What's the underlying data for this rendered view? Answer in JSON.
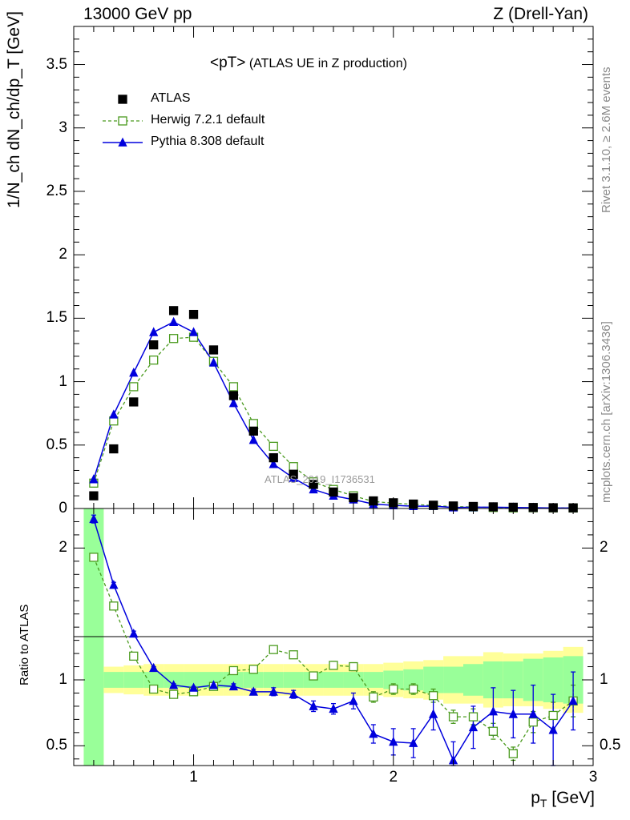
{
  "header": {
    "left": "13000 GeV pp",
    "right": "Z (Drell-Yan)"
  },
  "side_labels": {
    "rivet": "Rivet 3.1.10, ≥ 2.6M events",
    "mcplots": "mcplots.cern.ch [arXiv:1306.3436]"
  },
  "colors": {
    "atlas": "#000000",
    "herwig": "#4a9a1e",
    "pythia": "#0000dd",
    "band_outer": "#ffff99",
    "band_inner": "#99ff99",
    "watermark": "#9a9a9a"
  },
  "chart_data": [
    {
      "type": "scatter",
      "panel": "main",
      "title": "<pT>",
      "subtitle": "(ATLAS UE in Z production)",
      "watermark": "ATLAS_2019_I1736531",
      "xlabel_main": "p",
      "xlabel_sub": "T",
      "xlabel_unit": "[GeV]",
      "ylabel": "1/N_ch dN_ch/dp_T [GeV]",
      "xlim": [
        0.4,
        3.0
      ],
      "ylim": [
        0,
        3.8
      ],
      "xticks": [
        1,
        2,
        3
      ],
      "yticks": [
        0,
        0.5,
        1,
        1.5,
        2,
        2.5,
        3,
        3.5
      ],
      "ytick_labels": [
        "0",
        "0.5",
        "1",
        "1.5",
        "2",
        "2.5",
        "3",
        "3.5"
      ],
      "legend": [
        "ATLAS",
        "Herwig 7.2.1 default",
        "Pythia 8.308 default"
      ],
      "x": [
        0.5,
        0.6,
        0.7,
        0.8,
        0.9,
        1.0,
        1.1,
        1.2,
        1.3,
        1.4,
        1.5,
        1.6,
        1.7,
        1.8,
        1.9,
        2.0,
        2.1,
        2.2,
        2.3,
        2.4,
        2.5,
        2.6,
        2.7,
        2.8,
        2.9
      ],
      "series": [
        {
          "name": "ATLAS",
          "values": [
            0.1,
            0.47,
            0.84,
            1.29,
            1.56,
            1.53,
            1.25,
            0.89,
            0.61,
            0.4,
            0.27,
            0.19,
            0.13,
            0.085,
            0.06,
            0.045,
            0.035,
            0.026,
            0.02,
            0.016,
            0.013,
            0.01,
            0.008,
            0.006,
            0.005
          ]
        },
        {
          "name": "Herwig 7.2.1 default",
          "values": [
            0.2,
            0.69,
            0.96,
            1.17,
            1.34,
            1.35,
            1.16,
            0.96,
            0.67,
            0.49,
            0.33,
            0.21,
            0.15,
            0.1,
            0.055,
            0.042,
            0.033,
            0.023,
            0.015,
            0.012,
            0.008,
            0.005,
            0.006,
            0.005,
            0.004
          ]
        },
        {
          "name": "Pythia 8.308 default",
          "values": [
            0.23,
            0.74,
            1.07,
            1.39,
            1.47,
            1.39,
            1.15,
            0.83,
            0.54,
            0.35,
            0.24,
            0.15,
            0.1,
            0.07,
            0.035,
            0.025,
            0.018,
            0.019,
            0.008,
            0.01,
            0.01,
            0.008,
            0.006,
            0.004,
            0.004
          ]
        }
      ]
    },
    {
      "type": "line",
      "panel": "ratio",
      "ylabel": "Ratio to ATLAS",
      "xlim": [
        0.4,
        3.0
      ],
      "ylim": [
        0.35,
        2.3
      ],
      "xticks": [
        1,
        2,
        3
      ],
      "xtick_labels": [
        "1",
        "2",
        "3"
      ],
      "yticks": [
        0.5,
        1,
        2
      ],
      "ytick_labels": [
        "0.5",
        "1",
        "2"
      ],
      "x": [
        0.5,
        0.6,
        0.7,
        0.8,
        0.9,
        1.0,
        1.1,
        1.2,
        1.3,
        1.4,
        1.5,
        1.6,
        1.7,
        1.8,
        1.9,
        2.0,
        2.1,
        2.2,
        2.3,
        2.4,
        2.5,
        2.6,
        2.7,
        2.8,
        2.9
      ],
      "bin_edges": [
        0.45,
        0.55,
        0.65,
        0.75,
        0.85,
        0.95,
        1.05,
        1.15,
        1.25,
        1.35,
        1.45,
        1.55,
        1.65,
        1.75,
        1.85,
        1.95,
        2.05,
        2.15,
        2.25,
        2.35,
        2.45,
        2.55,
        2.65,
        2.75,
        2.85,
        2.95
      ],
      "band_outer_half": [
        2.0,
        0.1,
        0.11,
        0.12,
        0.12,
        0.12,
        0.12,
        0.12,
        0.12,
        0.12,
        0.12,
        0.12,
        0.12,
        0.12,
        0.12,
        0.13,
        0.14,
        0.15,
        0.18,
        0.18,
        0.21,
        0.2,
        0.2,
        0.22,
        0.25
      ],
      "band_inner_half": [
        1.3,
        0.06,
        0.06,
        0.06,
        0.06,
        0.06,
        0.06,
        0.06,
        0.06,
        0.06,
        0.06,
        0.06,
        0.06,
        0.06,
        0.06,
        0.07,
        0.08,
        0.1,
        0.1,
        0.12,
        0.14,
        0.14,
        0.16,
        0.17,
        0.18
      ],
      "series": [
        {
          "name": "Herwig 7.2.1 default",
          "values": [
            1.93,
            1.56,
            1.18,
            0.93,
            0.89,
            0.91,
            0.95,
            1.07,
            1.08,
            1.23,
            1.19,
            1.03,
            1.11,
            1.1,
            0.87,
            0.93,
            0.93,
            0.88,
            0.72,
            0.72,
            0.61,
            0.44,
            0.68,
            0.73,
            0.84
          ],
          "errors": [
            0.02,
            0.02,
            0.02,
            0.01,
            0.01,
            0.01,
            0.01,
            0.02,
            0.02,
            0.02,
            0.02,
            0.02,
            0.03,
            0.03,
            0.04,
            0.04,
            0.04,
            0.05,
            0.05,
            0.06,
            0.06,
            0.05,
            0.08,
            0.1,
            0.12
          ]
        },
        {
          "name": "Pythia 8.308 default",
          "values": [
            2.22,
            1.72,
            1.35,
            1.09,
            0.96,
            0.94,
            0.96,
            0.95,
            0.91,
            0.91,
            0.89,
            0.8,
            0.78,
            0.84,
            0.59,
            0.53,
            0.52,
            0.74,
            0.39,
            0.64,
            0.76,
            0.74,
            0.74,
            0.62,
            0.84
          ],
          "errors": [
            0.03,
            0.02,
            0.02,
            0.01,
            0.01,
            0.01,
            0.02,
            0.02,
            0.02,
            0.03,
            0.03,
            0.04,
            0.04,
            0.06,
            0.07,
            0.1,
            0.11,
            0.12,
            0.14,
            0.16,
            0.18,
            0.18,
            0.22,
            0.27,
            0.22
          ]
        }
      ]
    }
  ]
}
